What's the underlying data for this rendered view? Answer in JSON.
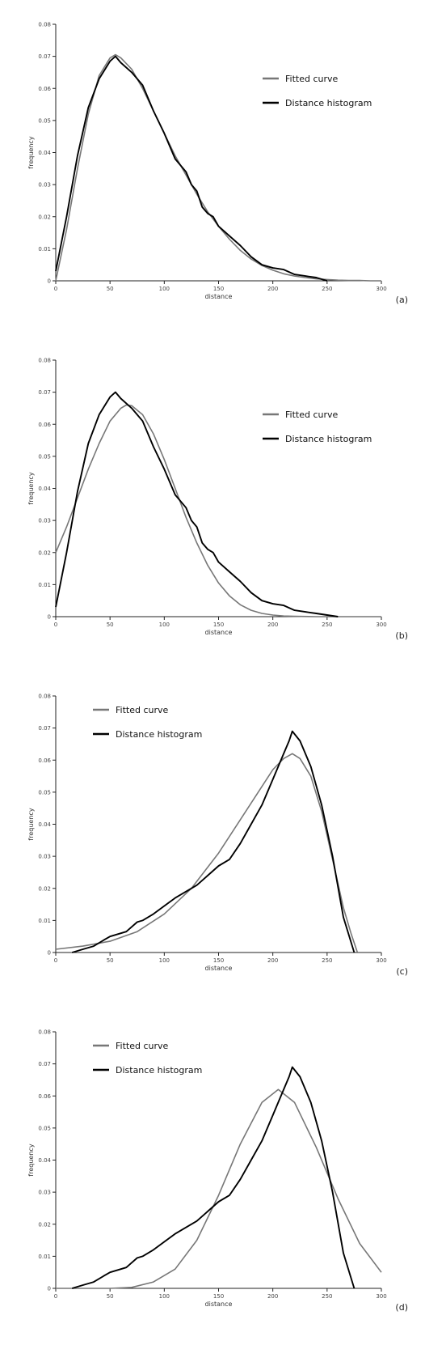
{
  "chart_data": [
    {
      "type": "line",
      "panel_label": "(a)",
      "xlabel": "distance",
      "ylabel": "frequency",
      "xlim": [
        0,
        300
      ],
      "ylim": [
        0,
        0.08
      ],
      "xticks": [
        "0",
        "50",
        "100",
        "150",
        "200",
        "250",
        "300"
      ],
      "yticks": [
        "0",
        "0.01",
        "0.02",
        "0.03",
        "0.04",
        "0.05",
        "0.06",
        "0.07",
        "0.08"
      ],
      "legend_position": "top-right",
      "series": [
        {
          "name": "Fitted curve",
          "color": "#777777",
          "x": [
            0,
            10,
            20,
            30,
            40,
            50,
            55,
            60,
            70,
            80,
            90,
            100,
            110,
            120,
            130,
            140,
            150,
            160,
            170,
            180,
            190,
            200,
            210,
            220,
            230,
            240,
            250,
            260,
            270,
            280,
            290,
            300
          ],
          "y": [
            0.0,
            0.016,
            0.035,
            0.052,
            0.064,
            0.0695,
            0.0705,
            0.0695,
            0.066,
            0.06,
            0.053,
            0.046,
            0.039,
            0.033,
            0.027,
            0.0215,
            0.017,
            0.013,
            0.0095,
            0.0068,
            0.0048,
            0.0033,
            0.0022,
            0.0015,
            0.001,
            0.0006,
            0.0004,
            0.0002,
            0.0001,
            0.0001,
            0.0,
            0.0
          ]
        },
        {
          "name": "Distance histogram",
          "color": "#000000",
          "x": [
            0,
            10,
            20,
            30,
            40,
            50,
            55,
            60,
            70,
            80,
            90,
            100,
            110,
            120,
            125,
            130,
            135,
            140,
            145,
            150,
            160,
            170,
            180,
            190,
            200,
            210,
            220,
            230,
            240,
            250
          ],
          "y": [
            0.003,
            0.02,
            0.039,
            0.054,
            0.063,
            0.0685,
            0.07,
            0.068,
            0.065,
            0.061,
            0.053,
            0.046,
            0.038,
            0.034,
            0.03,
            0.028,
            0.023,
            0.021,
            0.02,
            0.017,
            0.014,
            0.011,
            0.0075,
            0.005,
            0.004,
            0.0035,
            0.002,
            0.0015,
            0.001,
            0.0
          ]
        }
      ]
    },
    {
      "type": "line",
      "panel_label": "(b)",
      "xlabel": "distance",
      "ylabel": "frequency",
      "xlim": [
        0,
        300
      ],
      "ylim": [
        0,
        0.08
      ],
      "xticks": [
        "0",
        "50",
        "100",
        "150",
        "200",
        "250",
        "300"
      ],
      "yticks": [
        "0",
        "0.01",
        "0.02",
        "0.03",
        "0.04",
        "0.05",
        "0.06",
        "0.07",
        "0.08"
      ],
      "legend_position": "top-right",
      "series": [
        {
          "name": "Fitted curve",
          "color": "#777777",
          "x": [
            0,
            10,
            20,
            30,
            40,
            50,
            60,
            65,
            70,
            80,
            90,
            100,
            110,
            120,
            130,
            140,
            150,
            160,
            170,
            180,
            190,
            200,
            210,
            220,
            240,
            260,
            280,
            300
          ],
          "y": [
            0.02,
            0.028,
            0.037,
            0.046,
            0.054,
            0.061,
            0.065,
            0.066,
            0.0658,
            0.063,
            0.057,
            0.049,
            0.04,
            0.031,
            0.023,
            0.016,
            0.0105,
            0.0065,
            0.0037,
            0.002,
            0.001,
            0.0005,
            0.0002,
            0.0001,
            0.0,
            0.0,
            0.0,
            0.0
          ]
        },
        {
          "name": "Distance histogram",
          "color": "#000000",
          "x": [
            0,
            10,
            20,
            30,
            40,
            50,
            55,
            60,
            70,
            80,
            90,
            100,
            110,
            120,
            125,
            130,
            135,
            140,
            145,
            150,
            160,
            170,
            180,
            190,
            200,
            210,
            220,
            230,
            240,
            250,
            260
          ],
          "y": [
            0.003,
            0.02,
            0.039,
            0.054,
            0.063,
            0.0685,
            0.07,
            0.068,
            0.065,
            0.061,
            0.053,
            0.046,
            0.038,
            0.034,
            0.03,
            0.028,
            0.023,
            0.021,
            0.02,
            0.017,
            0.014,
            0.011,
            0.0075,
            0.005,
            0.004,
            0.0035,
            0.002,
            0.0015,
            0.001,
            0.0005,
            0.0
          ]
        }
      ]
    },
    {
      "type": "line",
      "panel_label": "(c)",
      "xlabel": "distance",
      "ylabel": "frequency",
      "xlim": [
        0,
        300
      ],
      "ylim": [
        0,
        0.08
      ],
      "xticks": [
        "0",
        "50",
        "100",
        "150",
        "200",
        "250",
        "300"
      ],
      "yticks": [
        "0",
        "0.01",
        "0.02",
        "0.03",
        "0.04",
        "0.05",
        "0.06",
        "0.07",
        "0.08"
      ],
      "legend_position": "top-left",
      "series": [
        {
          "name": "Fitted curve",
          "color": "#777777",
          "x": [
            0,
            25,
            50,
            75,
            100,
            125,
            150,
            175,
            200,
            210,
            218,
            225,
            235,
            245,
            255,
            265,
            272,
            278
          ],
          "y": [
            0.001,
            0.002,
            0.0035,
            0.0065,
            0.012,
            0.02,
            0.031,
            0.044,
            0.057,
            0.0605,
            0.062,
            0.0605,
            0.055,
            0.044,
            0.029,
            0.014,
            0.006,
            0.0
          ]
        },
        {
          "name": "Distance histogram",
          "color": "#000000",
          "x": [
            15,
            25,
            35,
            45,
            50,
            55,
            60,
            65,
            70,
            75,
            80,
            85,
            90,
            100,
            110,
            120,
            130,
            140,
            150,
            160,
            170,
            180,
            190,
            200,
            210,
            215,
            218,
            225,
            235,
            245,
            255,
            265,
            275
          ],
          "y": [
            0.0,
            0.001,
            0.002,
            0.004,
            0.005,
            0.0055,
            0.006,
            0.0065,
            0.008,
            0.0095,
            0.01,
            0.011,
            0.012,
            0.0145,
            0.017,
            0.019,
            0.021,
            0.024,
            0.027,
            0.029,
            0.034,
            0.04,
            0.046,
            0.054,
            0.062,
            0.066,
            0.069,
            0.066,
            0.058,
            0.046,
            0.03,
            0.011,
            0.0
          ]
        }
      ]
    },
    {
      "type": "line",
      "panel_label": "(d)",
      "xlabel": "distance",
      "ylabel": "frequency",
      "xlim": [
        0,
        300
      ],
      "ylim": [
        0,
        0.08
      ],
      "xticks": [
        "0",
        "50",
        "100",
        "150",
        "200",
        "250",
        "300"
      ],
      "yticks": [
        "0",
        "0.01",
        "0.02",
        "0.03",
        "0.04",
        "0.05",
        "0.06",
        "0.07",
        "0.08"
      ],
      "legend_position": "top-left",
      "series": [
        {
          "name": "Fitted curve",
          "color": "#777777",
          "x": [
            0,
            50,
            70,
            90,
            110,
            130,
            150,
            170,
            190,
            205,
            220,
            240,
            260,
            280,
            300
          ],
          "y": [
            0.0,
            0.0,
            0.0003,
            0.002,
            0.006,
            0.015,
            0.029,
            0.045,
            0.058,
            0.062,
            0.058,
            0.044,
            0.028,
            0.014,
            0.005
          ]
        },
        {
          "name": "Distance histogram",
          "color": "#000000",
          "x": [
            15,
            25,
            35,
            45,
            50,
            55,
            60,
            65,
            70,
            75,
            80,
            85,
            90,
            100,
            110,
            120,
            130,
            140,
            150,
            160,
            170,
            180,
            190,
            200,
            210,
            215,
            218,
            225,
            235,
            245,
            255,
            265,
            275
          ],
          "y": [
            0.0,
            0.001,
            0.002,
            0.004,
            0.005,
            0.0055,
            0.006,
            0.0065,
            0.008,
            0.0095,
            0.01,
            0.011,
            0.012,
            0.0145,
            0.017,
            0.019,
            0.021,
            0.024,
            0.027,
            0.029,
            0.034,
            0.04,
            0.046,
            0.054,
            0.062,
            0.066,
            0.069,
            0.066,
            0.058,
            0.046,
            0.03,
            0.011,
            0.0
          ]
        }
      ]
    }
  ]
}
